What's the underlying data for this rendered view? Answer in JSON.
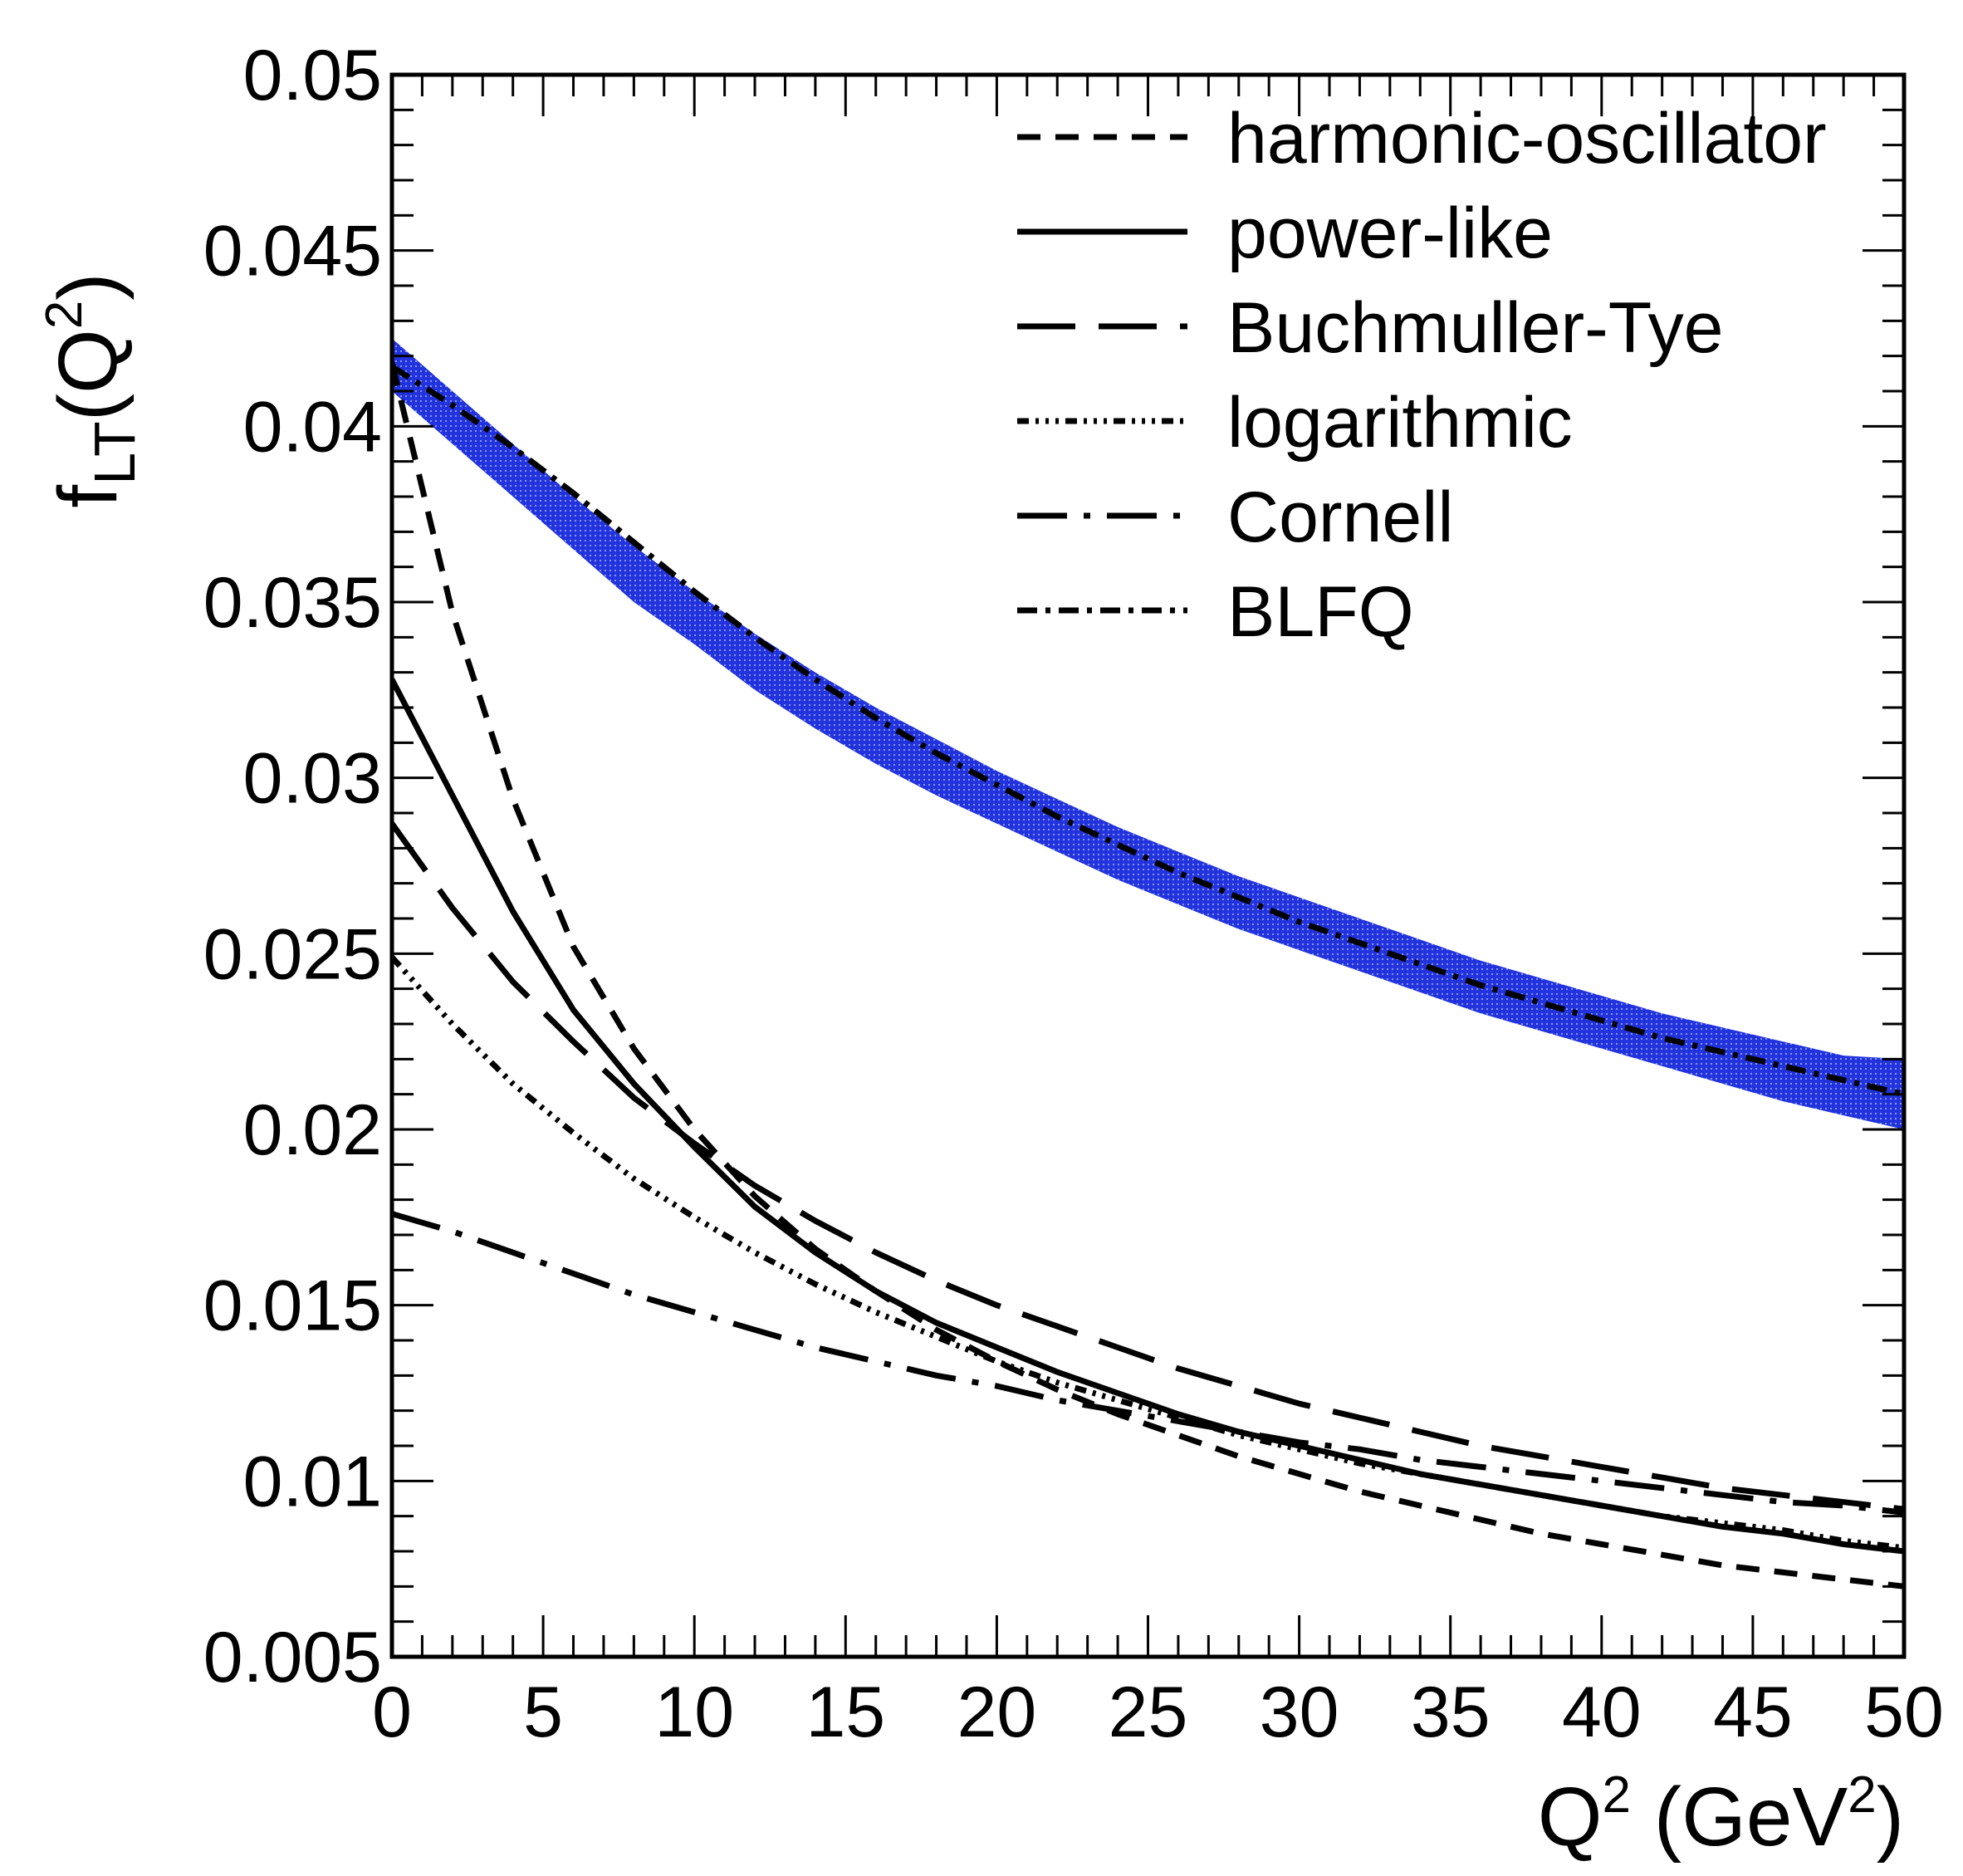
{
  "chart_data": {
    "type": "line",
    "xlabel": "Q^2 (GeV^2)",
    "ylabel": "f_LT(Q^2)",
    "xlim": [
      0,
      50
    ],
    "ylim": [
      0.005,
      0.05
    ],
    "grid": false,
    "legend_position": "top-right",
    "x_ticks": [
      "0",
      "5",
      "10",
      "15",
      "20",
      "25",
      "30",
      "35",
      "40",
      "45",
      "50"
    ],
    "y_ticks": [
      "0.005",
      "0.01",
      "0.015",
      "0.02",
      "0.025",
      "0.03",
      "0.035",
      "0.04",
      "0.045",
      "0.05"
    ],
    "x": [
      0,
      2,
      4,
      6,
      8,
      10,
      12,
      14,
      16,
      18,
      20,
      22,
      24,
      26,
      28,
      30,
      32,
      34,
      36,
      38,
      40,
      42,
      44,
      46,
      48,
      50
    ],
    "band": {
      "color": "#2233dd",
      "lower": [
        0.041,
        0.0395,
        0.038,
        0.0365,
        0.035,
        0.0338,
        0.0325,
        0.0314,
        0.0304,
        0.0295,
        0.0287,
        0.0279,
        0.0271,
        0.0264,
        0.0257,
        0.0251,
        0.0245,
        0.0239,
        0.0233,
        0.0228,
        0.0223,
        0.0218,
        0.0213,
        0.0208,
        0.0204,
        0.02
      ],
      "upper": [
        0.0425,
        0.041,
        0.0395,
        0.038,
        0.0366,
        0.0353,
        0.0341,
        0.033,
        0.032,
        0.0311,
        0.0302,
        0.0294,
        0.0286,
        0.0279,
        0.0272,
        0.0266,
        0.026,
        0.0254,
        0.0248,
        0.0243,
        0.0238,
        0.0233,
        0.0229,
        0.0225,
        0.0221,
        0.022
      ]
    },
    "series": [
      {
        "name": "harmonic-oscillator",
        "dash": "28,18",
        "values": [
          0.0418,
          0.0347,
          0.0294,
          0.0252,
          0.0223,
          0.02,
          0.0181,
          0.0166,
          0.0154,
          0.0143,
          0.0134,
          0.0126,
          0.0119,
          0.0113,
          0.0107,
          0.0102,
          0.0097,
          0.0093,
          0.0089,
          0.0085,
          0.0082,
          0.0079,
          0.0076,
          0.0074,
          0.0072,
          0.007
        ]
      },
      {
        "name": "power-like",
        "dash": "",
        "values": [
          0.0328,
          0.0295,
          0.0262,
          0.0234,
          0.0213,
          0.0195,
          0.0178,
          0.0165,
          0.0154,
          0.0145,
          0.0138,
          0.0131,
          0.0125,
          0.0119,
          0.0114,
          0.011,
          0.0106,
          0.0102,
          0.0099,
          0.0096,
          0.0093,
          0.009,
          0.0087,
          0.0085,
          0.0082,
          0.008
        ]
      },
      {
        "name": "Buchmuller-Tye",
        "dash": "70,28",
        "values": [
          0.0287,
          0.0263,
          0.0242,
          0.0225,
          0.0209,
          0.0196,
          0.0184,
          0.0174,
          0.0165,
          0.0157,
          0.015,
          0.0144,
          0.0138,
          0.0132,
          0.0127,
          0.0122,
          0.0118,
          0.0114,
          0.011,
          0.0107,
          0.0104,
          0.0101,
          0.0098,
          0.0096,
          0.0094,
          0.0092
        ]
      },
      {
        "name": "logarithmic",
        "dash": "14,8,4,8,4,8,4,8",
        "values": [
          0.0249,
          0.023,
          0.0213,
          0.0199,
          0.0186,
          0.0175,
          0.0165,
          0.0156,
          0.0148,
          0.0141,
          0.0134,
          0.0128,
          0.0123,
          0.0118,
          0.0113,
          0.0109,
          0.0105,
          0.0102,
          0.0099,
          0.0096,
          0.0093,
          0.009,
          0.0088,
          0.0086,
          0.0083,
          0.0081
        ]
      },
      {
        "name": "Cornell",
        "dash": "60,20,8,20",
        "values": [
          0.0176,
          0.0171,
          0.0165,
          0.0159,
          0.0153,
          0.0148,
          0.0143,
          0.0138,
          0.0134,
          0.013,
          0.0127,
          0.0123,
          0.012,
          0.0117,
          0.0114,
          0.0111,
          0.0109,
          0.0106,
          0.0104,
          0.0102,
          0.01,
          0.0098,
          0.0096,
          0.0094,
          0.0093,
          0.0091
        ]
      },
      {
        "name": "BLFQ",
        "dash": "24,10,6,10",
        "values": [
          0.0417,
          0.0406,
          0.0394,
          0.0381,
          0.0367,
          0.0353,
          0.034,
          0.0328,
          0.0317,
          0.0307,
          0.0298,
          0.0289,
          0.0281,
          0.0273,
          0.0266,
          0.0259,
          0.0253,
          0.0247,
          0.0241,
          0.0236,
          0.0231,
          0.0226,
          0.0222,
          0.0218,
          0.0214,
          0.021
        ]
      }
    ]
  }
}
